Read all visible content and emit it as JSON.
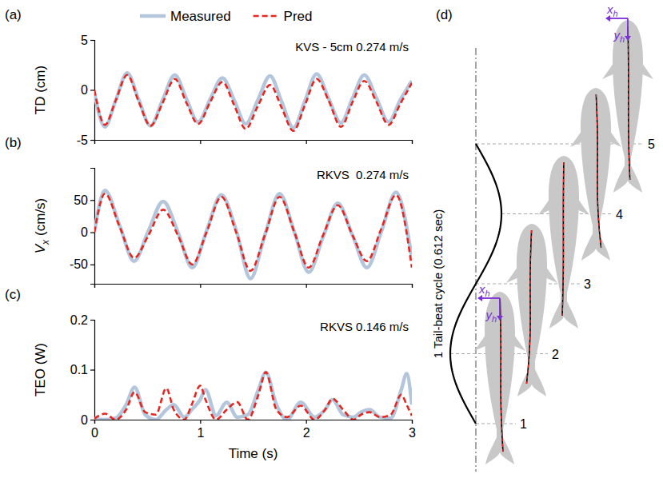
{
  "chart_data": [
    {
      "type": "line",
      "title": "(a)",
      "annotation": "KVS - 5cm 0.274 m/s",
      "ylabel": "TD (cm)",
      "x": [
        0,
        0.1,
        0.2,
        0.31,
        0.42,
        0.53,
        0.645,
        0.76,
        0.87,
        0.98,
        1.095,
        1.21,
        1.32,
        1.43,
        1.545,
        1.66,
        1.77,
        1.88,
        1.99,
        2.1,
        2.215,
        2.33,
        2.44,
        2.55,
        2.665,
        2.78,
        2.89,
        3
      ],
      "xlim": [
        0,
        3
      ],
      "xticks": [
        0,
        1,
        2,
        3
      ],
      "ylim": [
        -5,
        5
      ],
      "yticks": [
        -5,
        0,
        5
      ],
      "tick_labels": "y",
      "legend": "top",
      "series": [
        {
          "name": "Measured",
          "color": "#b3c6db",
          "line_style": "solid",
          "values": [
            -0.3,
            -3.7,
            -1.1,
            1.7,
            -1.0,
            -3.6,
            -1.0,
            1.5,
            -0.9,
            -3.2,
            -0.9,
            1.2,
            -1.0,
            -3.4,
            -1.0,
            1.4,
            -1.2,
            -3.8,
            -1.1,
            1.6,
            -0.9,
            -3.3,
            -0.8,
            1.5,
            -0.8,
            -3.2,
            -1.0,
            0.9
          ]
        },
        {
          "name": "Pred",
          "color": "#e8251f",
          "line_style": "dashed",
          "values": [
            0,
            -3.5,
            -1.1,
            1.5,
            -1.2,
            -3.6,
            -1.3,
            1.1,
            -1.3,
            -3.4,
            -1.2,
            0.8,
            -1.5,
            -3.9,
            -1.6,
            0.5,
            -1.8,
            -4.1,
            -1.5,
            1.1,
            -1.1,
            -3.7,
            -1.2,
            0.9,
            -1.2,
            -3.5,
            -1.4,
            0.7
          ]
        }
      ]
    },
    {
      "type": "line",
      "title": "(b)",
      "annotation": "RKVS  0.274 m/s",
      "ylabel": {
        "main": "V",
        "sub": "x",
        "unit": "(cm/s)"
      },
      "x": [
        0,
        0.1,
        0.24,
        0.375,
        0.51,
        0.65,
        0.79,
        0.925,
        1.06,
        1.2,
        1.34,
        1.475,
        1.61,
        1.75,
        1.89,
        2.025,
        2.16,
        2.3,
        2.44,
        2.575,
        2.71,
        2.85,
        3
      ],
      "xlim": [
        0,
        3
      ],
      "xticks": [
        0,
        1,
        2,
        3
      ],
      "ylim": [
        -80,
        100
      ],
      "yticks": [
        -50,
        0,
        50
      ],
      "tick_labels": "y",
      "series": [
        {
          "name": "Measured",
          "color": "#b3c6db",
          "line_style": "solid",
          "values": [
            0,
            65,
            10,
            -45,
            2,
            48,
            0,
            -55,
            2,
            58,
            3,
            -72,
            -5,
            60,
            0,
            -62,
            -8,
            45,
            -5,
            -55,
            0,
            62,
            -40
          ]
        },
        {
          "name": "Pred",
          "color": "#e8251f",
          "line_style": "dashed",
          "values": [
            0,
            60,
            8,
            -40,
            -5,
            35,
            -5,
            -50,
            0,
            55,
            0,
            -60,
            -5,
            55,
            0,
            -55,
            -5,
            42,
            -5,
            -45,
            5,
            58,
            -55
          ]
        }
      ]
    },
    {
      "type": "line",
      "title": "(c)",
      "annotation": "RKVS 0.146 m/s",
      "ylabel": "TEO (W)",
      "xlabel": "Time (s)",
      "x": [
        0,
        0.1,
        0.2,
        0.3,
        0.38,
        0.48,
        0.58,
        0.68,
        0.75,
        0.85,
        0.92,
        1.0,
        1.05,
        1.15,
        1.25,
        1.35,
        1.45,
        1.55,
        1.62,
        1.72,
        1.82,
        1.95,
        2.08,
        2.18,
        2.25,
        2.35,
        2.45,
        2.52,
        2.6,
        2.7,
        2.8,
        2.9,
        2.95,
        3
      ],
      "xlim": [
        0,
        3
      ],
      "xticks": [
        0,
        1,
        2,
        3
      ],
      "ylim": [
        0,
        0.2
      ],
      "yticks": [
        0,
        0.1,
        0.2
      ],
      "series": [
        {
          "name": "Measured",
          "color": "#b3c6db",
          "line_style": "solid",
          "values": [
            0.002,
            0.0,
            0.003,
            0.03,
            0.065,
            0.01,
            0.0,
            0.02,
            0.03,
            0.005,
            0.02,
            0.04,
            0.06,
            0.008,
            0.035,
            0.005,
            0.01,
            0.06,
            0.095,
            0.03,
            0.0,
            0.035,
            0.005,
            0.02,
            0.04,
            0.01,
            0.005,
            0.015,
            0.02,
            0.005,
            0.003,
            0.06,
            0.092,
            0.03
          ]
        },
        {
          "name": "Pred",
          "color": "#e8251f",
          "line_style": "dashed",
          "values": [
            0.002,
            0.012,
            0.0,
            0.02,
            0.055,
            0.015,
            0.01,
            0.063,
            0.02,
            0.0,
            0.03,
            0.068,
            0.04,
            0.0,
            0.02,
            0.035,
            0.0,
            0.05,
            0.095,
            0.02,
            0.005,
            0.028,
            0.0,
            0.02,
            0.042,
            0.02,
            0.0,
            0.01,
            0.015,
            0.005,
            0.01,
            0.05,
            0.03,
            0.008
          ]
        }
      ]
    },
    {
      "type": "diagram",
      "title": "(d)",
      "annotation": "1 Tail-beat cycle (0.612 sec)",
      "stages": [
        1,
        2,
        3,
        4,
        5
      ],
      "frame_labels": [
        {
          "text": "x",
          "sub": "h"
        },
        {
          "text": "y",
          "sub": "h"
        }
      ]
    }
  ]
}
